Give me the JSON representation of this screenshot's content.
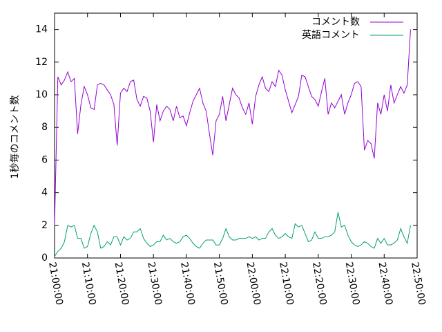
{
  "chart_data": {
    "type": "line",
    "ylabel": "1秒毎のコメント数",
    "x": [
      "21:00:00",
      "21:01:00",
      "21:02:00",
      "21:03:00",
      "21:04:00",
      "21:05:00",
      "21:06:00",
      "21:07:00",
      "21:08:00",
      "21:09:00",
      "21:10:00",
      "21:11:00",
      "21:12:00",
      "21:13:00",
      "21:14:00",
      "21:15:00",
      "21:16:00",
      "21:17:00",
      "21:18:00",
      "21:19:00",
      "21:20:00",
      "21:21:00",
      "21:22:00",
      "21:23:00",
      "21:24:00",
      "21:25:00",
      "21:26:00",
      "21:27:00",
      "21:28:00",
      "21:29:00",
      "21:30:00",
      "21:31:00",
      "21:32:00",
      "21:33:00",
      "21:34:00",
      "21:35:00",
      "21:36:00",
      "21:37:00",
      "21:38:00",
      "21:39:00",
      "21:40:00",
      "21:41:00",
      "21:42:00",
      "21:43:00",
      "21:44:00",
      "21:45:00",
      "21:46:00",
      "21:47:00",
      "21:48:00",
      "21:49:00",
      "21:50:00",
      "21:51:00",
      "21:52:00",
      "21:53:00",
      "21:54:00",
      "21:55:00",
      "21:56:00",
      "21:57:00",
      "21:58:00",
      "21:59:00",
      "22:00:00",
      "22:01:00",
      "22:02:00",
      "22:03:00",
      "22:04:00",
      "22:05:00",
      "22:06:00",
      "22:07:00",
      "22:08:00",
      "22:09:00",
      "22:10:00",
      "22:11:00",
      "22:12:00",
      "22:13:00",
      "22:14:00",
      "22:15:00",
      "22:16:00",
      "22:17:00",
      "22:18:00",
      "22:19:00",
      "22:20:00",
      "22:21:00",
      "22:22:00",
      "22:23:00",
      "22:24:00",
      "22:25:00",
      "22:26:00",
      "22:27:00",
      "22:28:00",
      "22:29:00",
      "22:30:00",
      "22:31:00",
      "22:32:00",
      "22:33:00",
      "22:34:00",
      "22:35:00",
      "22:36:00",
      "22:37:00",
      "22:38:00",
      "22:39:00",
      "22:40:00",
      "22:41:00",
      "22:42:00",
      "22:43:00",
      "22:44:00",
      "22:45:00",
      "22:46:00",
      "22:47:00",
      "22:48:00"
    ],
    "series": [
      {
        "name": "コメント数",
        "color": "#9400d3",
        "values": [
          2.0,
          11.1,
          10.6,
          10.9,
          11.4,
          10.8,
          11.0,
          7.6,
          9.4,
          10.5,
          10.0,
          9.2,
          9.1,
          10.6,
          10.7,
          10.6,
          10.3,
          10.0,
          9.4,
          6.9,
          10.1,
          10.4,
          10.2,
          10.8,
          10.9,
          9.7,
          9.3,
          9.9,
          9.8,
          9.0,
          7.1,
          9.4,
          8.4,
          9.0,
          9.3,
          9.1,
          8.4,
          9.3,
          8.6,
          8.7,
          8.1,
          8.9,
          9.6,
          10.0,
          10.4,
          9.5,
          9.0,
          7.6,
          6.3,
          8.4,
          8.8,
          9.9,
          8.4,
          9.4,
          10.4,
          10.0,
          9.8,
          9.2,
          8.8,
          9.5,
          8.2,
          9.9,
          10.6,
          11.1,
          10.4,
          10.2,
          10.8,
          10.5,
          11.5,
          11.2,
          10.3,
          9.6,
          8.9,
          9.4,
          9.9,
          11.2,
          11.1,
          10.5,
          9.9,
          9.7,
          9.3,
          10.2,
          11.0,
          8.8,
          9.5,
          9.2,
          9.6,
          10.0,
          8.8,
          9.5,
          10.0,
          10.7,
          10.8,
          10.5,
          6.6,
          7.2,
          7.0,
          6.1,
          9.5,
          8.8,
          10.0,
          9.0,
          10.6,
          9.5,
          10.0,
          10.5,
          10.1,
          10.6,
          14.0
        ]
      },
      {
        "name": "英語コメント",
        "color": "#009e73",
        "values": [
          0.1,
          0.4,
          0.6,
          1.0,
          2.0,
          1.9,
          2.0,
          1.2,
          1.2,
          0.6,
          0.7,
          1.5,
          2.0,
          1.6,
          0.6,
          0.7,
          1.0,
          0.8,
          1.3,
          1.3,
          0.8,
          1.3,
          1.1,
          1.2,
          1.6,
          1.6,
          1.8,
          1.2,
          0.9,
          0.7,
          0.8,
          1.0,
          1.0,
          1.4,
          1.1,
          1.2,
          1.0,
          0.9,
          1.0,
          1.3,
          1.4,
          1.2,
          0.9,
          0.7,
          0.6,
          0.9,
          1.1,
          1.1,
          1.1,
          0.8,
          0.8,
          1.2,
          1.8,
          1.3,
          1.1,
          1.1,
          1.2,
          1.2,
          1.2,
          1.3,
          1.2,
          1.3,
          1.1,
          1.2,
          1.2,
          1.6,
          1.8,
          1.4,
          1.2,
          1.3,
          1.5,
          1.3,
          1.2,
          2.1,
          1.9,
          2.0,
          1.5,
          1.0,
          1.1,
          1.6,
          1.2,
          1.2,
          1.3,
          1.3,
          1.4,
          1.6,
          2.8,
          1.9,
          2.0,
          1.4,
          1.0,
          0.8,
          0.7,
          0.8,
          1.0,
          0.9,
          0.7,
          0.6,
          1.2,
          0.9,
          1.2,
          0.8,
          0.8,
          0.9,
          1.1,
          1.8,
          1.3,
          0.9,
          2.0
        ]
      }
    ],
    "xlim": [
      "21:00:00",
      "22:50:00"
    ],
    "xticks": [
      "21:00:00",
      "21:10:00",
      "21:20:00",
      "21:30:00",
      "21:40:00",
      "21:50:00",
      "22:00:00",
      "22:10:00",
      "22:20:00",
      "22:30:00",
      "22:40:00",
      "22:50:00"
    ],
    "ylim": [
      0,
      15
    ],
    "yticks": [
      0,
      2,
      4,
      6,
      8,
      10,
      12,
      14
    ],
    "grid": false,
    "legend": "top-right"
  }
}
